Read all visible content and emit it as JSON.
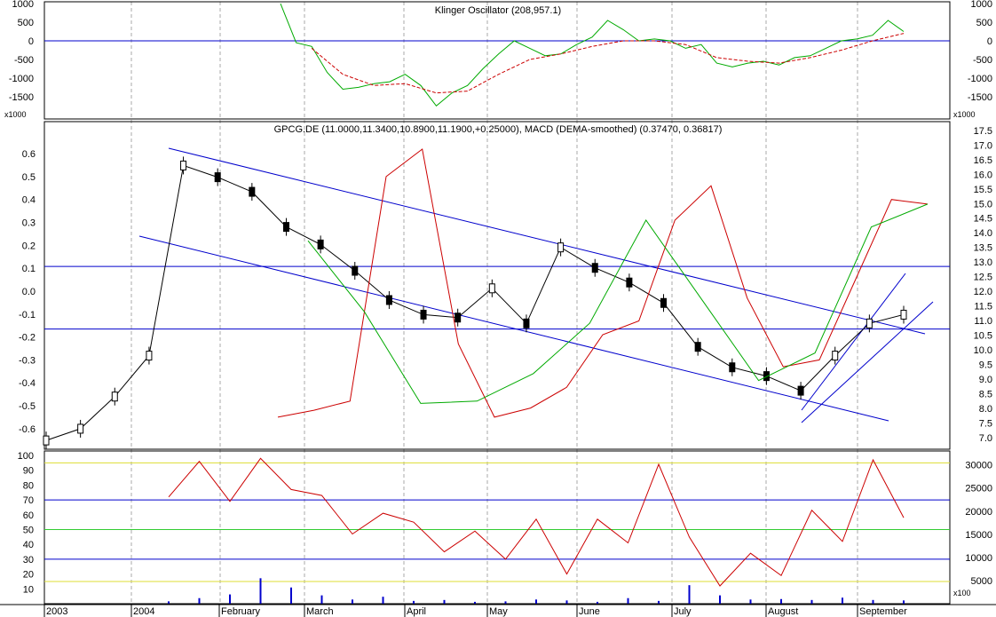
{
  "chart_data": [
    {
      "type": "line",
      "title": "Klinger Oscillator (208,957.1)",
      "y_ticks_left": [
        "1000",
        "500",
        "0",
        "-500",
        "-1000",
        "-1500"
      ],
      "y_ticks_right": [
        "1000",
        "500",
        "0",
        "-500",
        "-1000",
        "-1500"
      ],
      "multiplier_left": "x1000",
      "multiplier_right": "x1000",
      "ylim": [
        -2100,
        1050
      ],
      "series": [
        {
          "color": "#00aa00",
          "style": "solid",
          "x": [
            0,
            2,
            4,
            6,
            8,
            10,
            12,
            14,
            16,
            18,
            20,
            22,
            24,
            26,
            28,
            30,
            32,
            34,
            36,
            38,
            40,
            42,
            44,
            46,
            48,
            50,
            52,
            54,
            56,
            58,
            60,
            62,
            64,
            66,
            68,
            70,
            72,
            74,
            76,
            78,
            80
          ],
          "values": [
            1000,
            -50,
            -150,
            -850,
            -1300,
            -1250,
            -1150,
            -1100,
            -900,
            -1200,
            -1750,
            -1400,
            -1200,
            -750,
            -350,
            0,
            -200,
            -400,
            -350,
            -100,
            100,
            550,
            300,
            0,
            50,
            0,
            -200,
            -100,
            -600,
            -700,
            -600,
            -550,
            -650,
            -450,
            -400,
            -200,
            0,
            50,
            150,
            550,
            250
          ]
        },
        {
          "color": "#cc0000",
          "style": "dashed",
          "x": [
            4,
            8,
            12,
            16,
            20,
            24,
            28,
            32,
            36,
            40,
            44,
            48,
            52,
            56,
            60,
            64,
            68,
            72,
            76,
            80
          ],
          "values": [
            -200,
            -900,
            -1200,
            -1150,
            -1400,
            -1350,
            -900,
            -500,
            -350,
            -150,
            0,
            0,
            -100,
            -450,
            -550,
            -600,
            -450,
            -250,
            0,
            200
          ]
        }
      ]
    },
    {
      "type": "candlestick",
      "title": "GPCG.DE (11.0000,11.3400,10.8900,11.1900,+0.25000), MACD (DEMA-smoothed) (0.37470, 0.36817)",
      "y_ticks_left": [
        "0.6",
        "0.5",
        "0.4",
        "0.3",
        "0.2",
        "0.1",
        "0.0",
        "-0.1",
        "-0.2",
        "-0.3",
        "-0.4",
        "-0.5",
        "-0.6"
      ],
      "y_ticks_right": [
        "17.5",
        "17.0",
        "16.5",
        "16.0",
        "15.5",
        "15.0",
        "14.5",
        "14.0",
        "13.5",
        "13.0",
        "12.5",
        "12.0",
        "11.5",
        "11.0",
        "10.5",
        "10.0",
        "9.5",
        "9.0",
        "8.5",
        "8.0",
        "7.5",
        "7.0"
      ],
      "price_range": [
        6.6,
        17.8
      ],
      "macd_range": [
        -0.69,
        0.74
      ],
      "x_labels": [
        "2003",
        "2004",
        "February",
        "March",
        "April",
        "May",
        "June",
        "July",
        "August",
        "September"
      ],
      "close": [
        6.9,
        7.3,
        8.4,
        9.8,
        16.3,
        15.9,
        15.4,
        14.2,
        13.6,
        12.7,
        11.7,
        11.2,
        11.1,
        12.1,
        10.9,
        13.5,
        12.8,
        12.3,
        11.6,
        10.1,
        9.4,
        9.1,
        8.6,
        9.8,
        10.9,
        11.2
      ],
      "macd": [
        -0.55,
        -0.52,
        -0.48,
        0.5,
        0.62,
        -0.23,
        -0.55,
        -0.51,
        -0.42,
        -0.19,
        -0.13,
        0.31,
        0.46,
        -0.03,
        -0.33,
        -0.3,
        0.05,
        0.4,
        0.38
      ],
      "signal": [
        0.22,
        -0.09,
        -0.49,
        -0.48,
        -0.36,
        -0.14,
        0.31,
        -0.04,
        -0.39,
        -0.27,
        0.28,
        0.38
      ]
    },
    {
      "type": "bar",
      "series": [
        {
          "name": "",
          "color": "#cc0000",
          "type": "line",
          "x": [
            0,
            2,
            4,
            6,
            8,
            10,
            12,
            14,
            16,
            18,
            20,
            22,
            24,
            26,
            28,
            30,
            32,
            34,
            36,
            38,
            40,
            42,
            44,
            46,
            48
          ],
          "values": [
            72,
            96,
            69,
            98,
            77,
            73,
            47,
            61,
            55,
            35,
            49,
            30,
            57,
            20,
            57,
            41,
            94,
            45,
            12,
            34,
            19,
            63,
            42,
            97,
            58
          ]
        },
        {
          "name": "",
          "color": "#0000cc",
          "type": "bar",
          "x": [
            0,
            2,
            4,
            6,
            8,
            10,
            12,
            14,
            16,
            18,
            20,
            22,
            24,
            26,
            28,
            30,
            32,
            34,
            36,
            38,
            40,
            42,
            44,
            46,
            48
          ],
          "values": [
            500,
            1200,
            2000,
            5500,
            3500,
            1800,
            900,
            1500,
            600,
            800,
            400,
            500,
            900,
            700,
            400,
            1200,
            600,
            4000,
            1800,
            900,
            1000,
            800,
            1300,
            800,
            700
          ]
        }
      ],
      "y_ticks_left": [
        "100",
        "90",
        "80",
        "70",
        "60",
        "50",
        "40",
        "30",
        "20",
        "10"
      ],
      "y_ticks_right": [
        "30000",
        "25000",
        "20000",
        "15000",
        "10000",
        "5000"
      ],
      "multiplier_right": "x100",
      "ylim_left": [
        0,
        103
      ],
      "ylim_right": [
        0,
        33000
      ]
    }
  ],
  "colors": {
    "channel": "#0000cc",
    "macd": "#cc0000",
    "signal": "#00aa00",
    "level_line": "#0000cc",
    "yellow_line": "#dddd33",
    "green_line": "#33cc33"
  }
}
